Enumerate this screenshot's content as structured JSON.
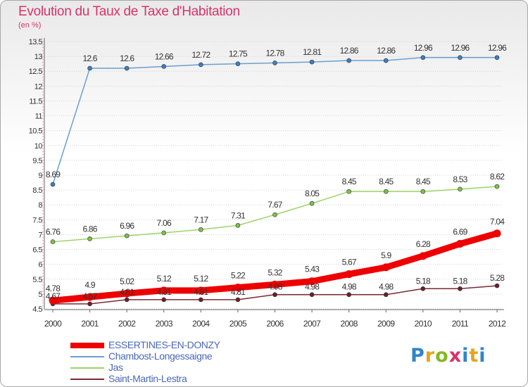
{
  "header": {
    "title": "Evolution du Taux de Taxe d'Habitation",
    "subtitle": "(en %)"
  },
  "logo": {
    "text": "Proxiti"
  },
  "colors": {
    "title": "#d8326a",
    "axis": "#333333",
    "grid": "#d0d0d0",
    "legend_text": "#4b68b8"
  },
  "chart_data": {
    "type": "line",
    "title": "Evolution du Taux de Taxe d'Habitation",
    "subtitle": "(en %)",
    "xlabel": "",
    "ylabel": "",
    "ylim": [
      4.5,
      13.5
    ],
    "ytick_step": 0.5,
    "yticks": [
      "4.5",
      "5",
      "5.5",
      "6",
      "6.5",
      "7",
      "7.5",
      "8",
      "8.5",
      "9",
      "9.5",
      "10",
      "10.5",
      "11",
      "11.5",
      "12",
      "12.5",
      "13",
      "13.5"
    ],
    "x": [
      "2000",
      "2001",
      "2002",
      "2003",
      "2004",
      "2005",
      "2006",
      "2007",
      "2008",
      "2009",
      "2010",
      "2011",
      "2012"
    ],
    "legend_position": "bottom-left",
    "grid": "horizontal",
    "series": [
      {
        "name": "ESSERTINES-EN-DONZY",
        "color": "#ee0000",
        "marker_color": "#ee0000",
        "emphasis": true,
        "values": [
          4.78,
          4.9,
          5.02,
          5.12,
          5.12,
          5.22,
          5.32,
          5.43,
          5.67,
          5.9,
          6.28,
          6.69,
          7.04
        ],
        "labels": [
          "4.78",
          "4.9",
          "5.02",
          "5.12",
          "5.12",
          "5.22",
          "5.32",
          "5.43",
          "5.67",
          "5.9",
          "6.28",
          "6.69",
          "7.04"
        ]
      },
      {
        "name": "Chambost-Longessaigne",
        "color": "#6b9fd0",
        "marker_color": "#3d7fc2",
        "emphasis": false,
        "values": [
          8.69,
          12.6,
          12.6,
          12.66,
          12.72,
          12.75,
          12.78,
          12.81,
          12.86,
          12.86,
          12.96,
          12.96,
          12.96
        ],
        "labels": [
          "8.69",
          "12.6",
          "12.6",
          "12.66",
          "12.72",
          "12.75",
          "12.78",
          "12.81",
          "12.86",
          "12.86",
          "12.96",
          "12.96",
          "12.96"
        ]
      },
      {
        "name": "Jas",
        "color": "#9ed36a",
        "marker_color": "#7cc24a",
        "emphasis": false,
        "values": [
          6.76,
          6.86,
          6.96,
          7.06,
          7.17,
          7.31,
          7.67,
          8.05,
          8.45,
          8.45,
          8.45,
          8.53,
          8.62
        ],
        "labels": [
          "6.76",
          "6.86",
          "6.96",
          "7.06",
          "7.17",
          "7.31",
          "7.67",
          "8.05",
          "8.45",
          "8.45",
          "8.45",
          "8.53",
          "8.62"
        ]
      },
      {
        "name": "Saint-Martin-Lestra",
        "color": "#7a2a34",
        "marker_color": "#6a1f2a",
        "emphasis": false,
        "values": [
          4.67,
          4.67,
          4.81,
          4.81,
          4.81,
          4.81,
          4.98,
          4.98,
          4.98,
          4.98,
          5.18,
          5.18,
          5.28
        ],
        "labels": [
          "4.67",
          "4.67",
          "4.81",
          "4.81",
          "4.81",
          "4.81",
          "4.98",
          "4.98",
          "4.98",
          "4.98",
          "5.18",
          "5.18",
          "5.28"
        ]
      }
    ]
  }
}
